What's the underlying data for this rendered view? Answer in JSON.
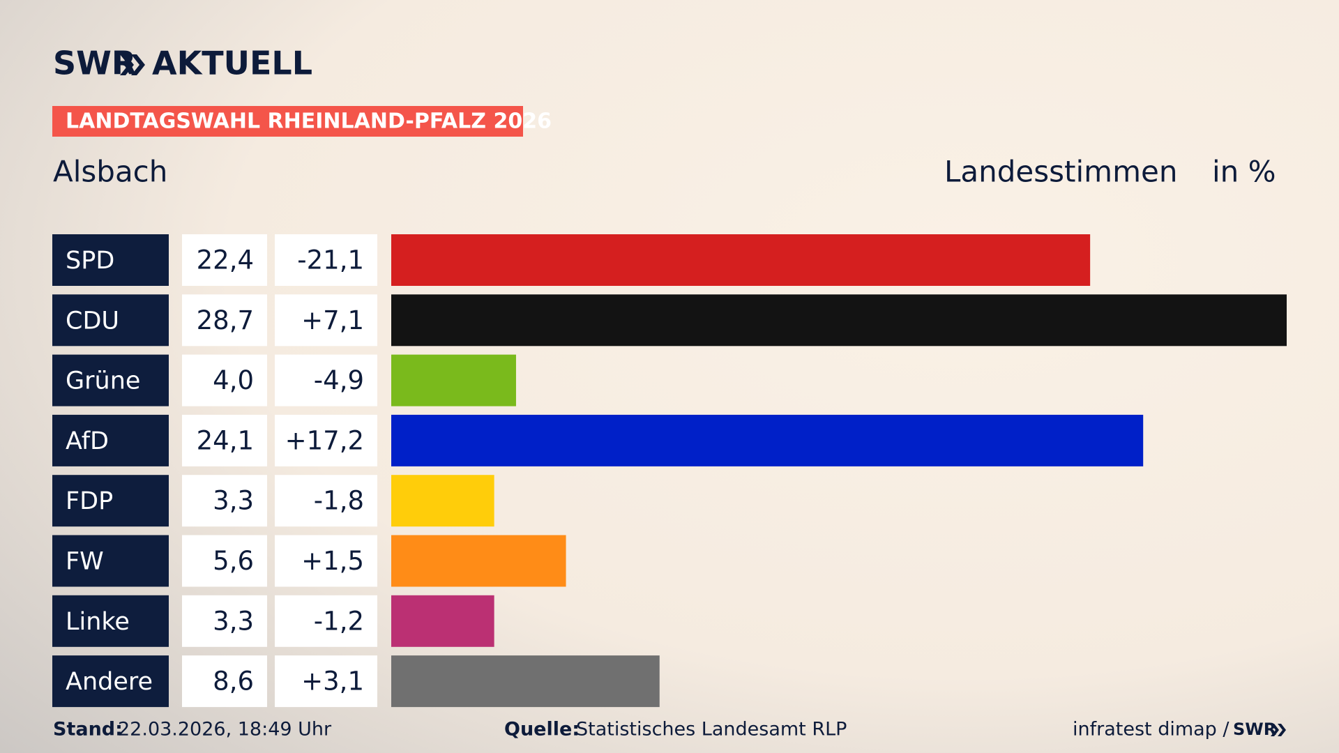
{
  "brand": {
    "logo": "SWR",
    "section": "AKTUELL"
  },
  "chart_data": {
    "type": "bar",
    "orientation": "horizontal",
    "title": "LANDTAGSWAHL RHEINLAND-PFALZ 2026",
    "subtitle": "Alsbach",
    "value_label": "Landesstimmen",
    "unit_label": "in %",
    "categories": [
      "SPD",
      "CDU",
      "Grüne",
      "AfD",
      "FDP",
      "FW",
      "Linke",
      "Andere"
    ],
    "values": [
      22.4,
      28.7,
      4.0,
      24.1,
      3.3,
      5.6,
      3.3,
      8.6
    ],
    "value_labels": [
      "22,4",
      "28,7",
      "4,0",
      "24,1",
      "3,3",
      "5,6",
      "3,3",
      "8,6"
    ],
    "colors": [
      "#d51f1f",
      "#131313",
      "#7aba1c",
      "#0020c8",
      "#ffcd0a",
      "#ff8c17",
      "#bb3073",
      "#707070"
    ],
    "changes": [
      -21.1,
      7.1,
      -4.9,
      17.2,
      -1.8,
      1.5,
      -1.2,
      3.1
    ],
    "change_labels": [
      "-21,1",
      "+7,1",
      "-4,9",
      "+17,2",
      "-1,8",
      "+1,5",
      "-1,2",
      "+3,1"
    ]
  },
  "footer": {
    "date_label": "Stand:",
    "date": "22.03.2026, 18:49 Uhr",
    "source_label": "Quelle:",
    "source": "Statistisches Landesamt RLP",
    "credit": "infratest dimap /",
    "credit_logo": "SWR"
  }
}
